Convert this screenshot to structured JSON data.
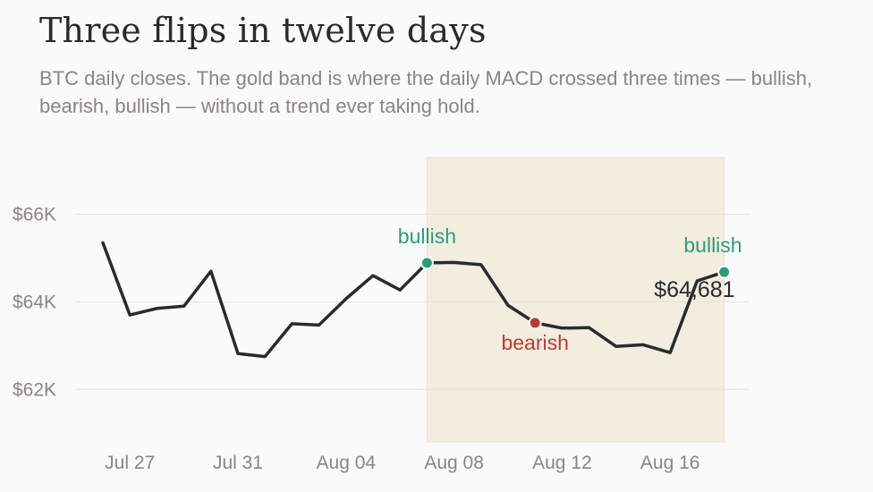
{
  "title": "Three flips in twelve days",
  "subtitle": "BTC daily closes. The gold band is where the daily MACD crossed three times — bullish, bearish, bullish — without a trend ever taking hold.",
  "colors": {
    "line": "#2a2a2a",
    "band": "#f3ede0",
    "bullish": "#2a9d7c",
    "bearish": "#c0392b",
    "grid": "#e6e2da"
  },
  "chart_data": {
    "type": "line",
    "title": "Three flips in twelve days",
    "xlabel": "",
    "ylabel": "",
    "grid": true,
    "x": [
      "2024-07-26",
      "2024-07-27",
      "2024-07-28",
      "2024-07-29",
      "2024-07-30",
      "2024-07-31",
      "2024-08-01",
      "2024-08-02",
      "2024-08-03",
      "2024-08-04",
      "2024-08-05",
      "2024-08-06",
      "2024-08-07",
      "2024-08-08",
      "2024-08-09",
      "2024-08-10",
      "2024-08-11",
      "2024-08-12",
      "2024-08-13",
      "2024-08-14",
      "2024-08-15",
      "2024-08-16",
      "2024-08-17",
      "2024-08-18"
    ],
    "series": [
      {
        "values": [
          65350,
          63700,
          63850,
          63900,
          64700,
          62820,
          62750,
          63500,
          63470,
          64070,
          64600,
          64270,
          64890,
          64900,
          64850,
          63920,
          63520,
          63400,
          63410,
          62980,
          63020,
          62840,
          64480,
          64681
        ]
      }
    ],
    "ylim": [
      60800,
      67300
    ],
    "y_ticks": [
      62000,
      64000,
      66000
    ],
    "y_tick_labels": [
      "$62K",
      "$64K",
      "$66K"
    ],
    "x_ticks": [
      "2024-07-27",
      "2024-07-31",
      "2024-08-04",
      "2024-08-08",
      "2024-08-12",
      "2024-08-16"
    ],
    "x_tick_labels": [
      "Jul 27",
      "Jul 31",
      "Aug 04",
      "Aug 08",
      "Aug 12",
      "Aug 16"
    ],
    "band": {
      "x_start": "2024-08-07",
      "x_end": "2024-08-18"
    },
    "annotations": [
      {
        "x": "2024-08-07",
        "label": "bullish",
        "kind": "bullish"
      },
      {
        "x": "2024-08-11",
        "label": "bearish",
        "kind": "bearish"
      },
      {
        "x": "2024-08-18",
        "label": "bullish",
        "kind": "bullish"
      }
    ],
    "last_value_label": "$64,681"
  }
}
